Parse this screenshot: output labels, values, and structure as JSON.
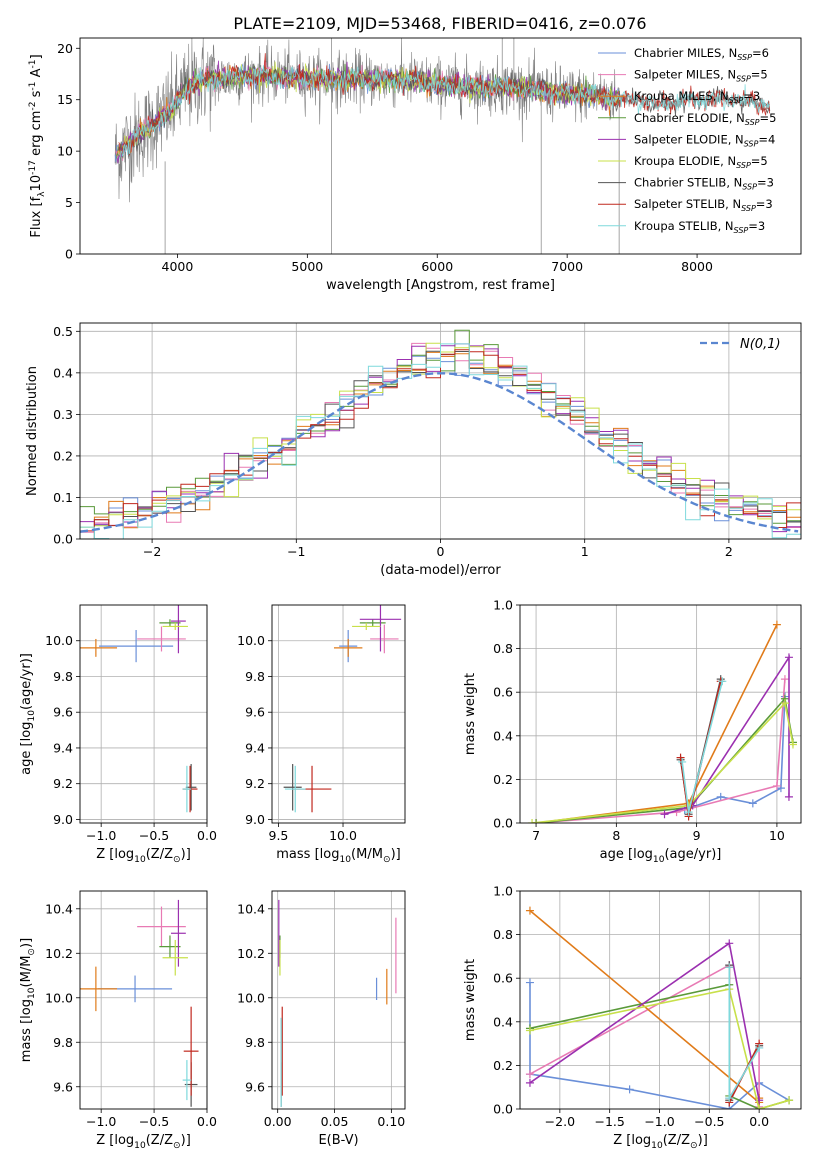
{
  "figure_title": "PLATE=2109, MJD=53468, FIBERID=0416, z=0.076",
  "colors": {
    "blue": "#6a8fd8",
    "pink": "#e87ab4",
    "orange": "#e07b1a",
    "green": "#5a9a3a",
    "purple": "#9b30b0",
    "yellow": "#c8e04a",
    "grey": "#555555",
    "red": "#c0281e",
    "cyan": "#7fd9dc",
    "spec": "#808080",
    "grid": "#b0b0b0"
  },
  "chart_data": [
    {
      "id": "spectrum",
      "type": "line",
      "xlabel": "wavelength [Angstrom, rest frame]",
      "ylabel": "Flux [f$_\\lambda$10$^{-17}$ erg cm$^{-2}$ s$^{-1}$ A$^{-1}$]",
      "xlim": [
        3250,
        8800
      ],
      "ylim": [
        0,
        21
      ],
      "xticks": [
        4000,
        5000,
        6000,
        7000,
        8000
      ],
      "yticks": [
        0,
        5,
        10,
        15,
        20
      ],
      "grid": false,
      "legend": "upper-right",
      "legend_entries": [
        {
          "label": "Chabrier MILES, N",
          "sub": "SSP",
          "suffix": "=6",
          "color": "blue"
        },
        {
          "label": "Salpeter MILES, N",
          "sub": "SSP",
          "suffix": "=5",
          "color": "pink"
        },
        {
          "label": "Kroupa MILES, N",
          "sub": "SSP",
          "suffix": "=3",
          "color": "orange"
        },
        {
          "label": "Chabrier ELODIE, N",
          "sub": "SSP",
          "suffix": "=5",
          "color": "green"
        },
        {
          "label": "Salpeter ELODIE, N",
          "sub": "SSP",
          "suffix": "=4",
          "color": "purple"
        },
        {
          "label": "Kroupa ELODIE, N",
          "sub": "SSP",
          "suffix": "=5",
          "color": "yellow"
        },
        {
          "label": "Chabrier STELIB, N",
          "sub": "SSP",
          "suffix": "=3",
          "color": "grey"
        },
        {
          "label": "Salpeter STELIB, N",
          "sub": "SSP",
          "suffix": "=3",
          "color": "red"
        },
        {
          "label": "Kroupa STELIB, N",
          "sub": "SSP",
          "suffix": "=3",
          "color": "cyan"
        }
      ],
      "continuum_knots": [
        [
          3520,
          9.5
        ],
        [
          3600,
          10.5
        ],
        [
          3700,
          11.5
        ],
        [
          3800,
          12.5
        ],
        [
          3900,
          13.5
        ],
        [
          3980,
          14.5
        ],
        [
          4050,
          15.8
        ],
        [
          4150,
          16.8
        ],
        [
          4300,
          17.0
        ],
        [
          4500,
          17.3
        ],
        [
          4800,
          17.3
        ],
        [
          5100,
          17.0
        ],
        [
          5400,
          17.0
        ],
        [
          5800,
          16.9
        ],
        [
          6000,
          16.5
        ],
        [
          6300,
          16.3
        ],
        [
          6600,
          16.2
        ],
        [
          6900,
          15.7
        ],
        [
          7200,
          15.4
        ],
        [
          7500,
          15.0
        ],
        [
          7700,
          14.6
        ],
        [
          8000,
          15.0
        ],
        [
          8300,
          15.0
        ],
        [
          8560,
          14.4
        ]
      ],
      "noisy_start": 3520,
      "noisy_end": 7400
    },
    {
      "id": "residuals",
      "type": "histogram",
      "xlabel": "(data-model)/error",
      "ylabel": "Normed distribution",
      "xlim": [
        -2.5,
        2.5
      ],
      "ylim": [
        0,
        0.52
      ],
      "xticks": [
        -2,
        -1,
        0,
        1,
        2
      ],
      "yticks": [
        0.0,
        0.1,
        0.2,
        0.3,
        0.4,
        0.5
      ],
      "grid": true,
      "legend": "upper-right",
      "gauss_label": "$\\mathcal{N}(0,1)$",
      "bin_width": 0.1,
      "bins_from": -2.5
    },
    {
      "id": "age_Z",
      "type": "errorbar",
      "xlabel": "Z [log$_{10}$(Z/Z$_\\odot$)]",
      "ylabel": "age  [log$_{10}$(age/yr)]",
      "xlim": [
        -1.2,
        0.0
      ],
      "ylim": [
        8.98,
        10.2
      ],
      "xticks": [
        -1.0,
        -0.5,
        0.0
      ],
      "yticks": [
        9.0,
        9.2,
        9.4,
        9.6,
        9.8,
        10.0
      ],
      "grid": true,
      "points": [
        {
          "c": "blue",
          "x": -0.67,
          "xe": 0.35,
          "y": 9.97,
          "ye": 0.09
        },
        {
          "c": "pink",
          "x": -0.43,
          "xe": 0.23,
          "y": 10.01,
          "ye": 0.07
        },
        {
          "c": "orange",
          "x": -1.05,
          "xe": 0.2,
          "y": 9.96,
          "ye": 0.05
        },
        {
          "c": "green",
          "x": -0.35,
          "xe": 0.1,
          "y": 10.1,
          "ye": 0.02
        },
        {
          "c": "purple",
          "x": -0.27,
          "xe": 0.07,
          "y": 10.11,
          "ye": 0.18
        },
        {
          "c": "yellow",
          "x": -0.3,
          "xe": 0.12,
          "y": 10.08,
          "ye": 0.02
        },
        {
          "c": "grey",
          "x": -0.15,
          "xe": 0.05,
          "y": 9.18,
          "ye": 0.13
        },
        {
          "c": "red",
          "x": -0.16,
          "xe": 0.07,
          "y": 9.17,
          "ye": 0.13
        },
        {
          "c": "cyan",
          "x": -0.19,
          "xe": 0.04,
          "y": 9.17,
          "ye": 0.13
        }
      ]
    },
    {
      "id": "age_mass",
      "type": "errorbar",
      "xlabel": "mass [log$_{10}$(M/M$_\\odot$)]",
      "ylabel": "",
      "xlim": [
        9.45,
        10.48
      ],
      "ylim": [
        8.98,
        10.2
      ],
      "xticks": [
        9.5,
        10.0
      ],
      "yticks": [
        9.0,
        9.2,
        9.4,
        9.6,
        9.8,
        10.0
      ],
      "grid": true,
      "points": [
        {
          "c": "blue",
          "x": 10.04,
          "xe": 0.07,
          "y": 9.97,
          "ye": 0.09
        },
        {
          "c": "pink",
          "x": 10.32,
          "xe": 0.11,
          "y": 10.01,
          "ye": 0.08
        },
        {
          "c": "orange",
          "x": 10.04,
          "xe": 0.11,
          "y": 9.96,
          "ye": 0.05
        },
        {
          "c": "green",
          "x": 10.23,
          "xe": 0.1,
          "y": 10.1,
          "ye": 0.02
        },
        {
          "c": "purple",
          "x": 10.29,
          "xe": 0.16,
          "y": 10.12,
          "ye": 0.18
        },
        {
          "c": "yellow",
          "x": 10.18,
          "xe": 0.11,
          "y": 10.08,
          "ye": 0.02
        },
        {
          "c": "grey",
          "x": 9.61,
          "xe": 0.07,
          "y": 9.18,
          "ye": 0.13
        },
        {
          "c": "red",
          "x": 9.76,
          "xe": 0.15,
          "y": 9.17,
          "ye": 0.13
        },
        {
          "c": "cyan",
          "x": 9.63,
          "xe": 0.08,
          "y": 9.17,
          "ye": 0.13
        }
      ]
    },
    {
      "id": "mw_age",
      "type": "line",
      "xlabel": "age  [log$_{10}$(age/yr)]",
      "ylabel": "mass weight",
      "xlim": [
        6.8,
        10.3
      ],
      "ylim": [
        0,
        1.0
      ],
      "xticks": [
        7,
        8,
        9,
        10
      ],
      "yticks": [
        0.0,
        0.2,
        0.4,
        0.6,
        0.8,
        1.0
      ],
      "grid": true,
      "series": [
        {
          "c": "blue",
          "pts": [
            [
              8.85,
              0.06
            ],
            [
              9.3,
              0.12
            ],
            [
              9.7,
              0.09
            ],
            [
              10.05,
              0.16
            ],
            [
              10.1,
              0.58
            ]
          ]
        },
        {
          "c": "pink",
          "pts": [
            [
              7.0,
              0.0
            ],
            [
              8.75,
              0.05
            ],
            [
              10.0,
              0.17
            ],
            [
              10.1,
              0.66
            ]
          ]
        },
        {
          "c": "orange",
          "pts": [
            [
              7.0,
              0.0
            ],
            [
              8.9,
              0.09
            ],
            [
              10.0,
              0.91
            ]
          ]
        },
        {
          "c": "green",
          "pts": [
            [
              7.0,
              0.0
            ],
            [
              8.9,
              0.07
            ],
            [
              10.1,
              0.57
            ],
            [
              10.2,
              0.37
            ]
          ]
        },
        {
          "c": "purple",
          "pts": [
            [
              8.6,
              0.04
            ],
            [
              8.95,
              0.08
            ],
            [
              10.15,
              0.76
            ],
            [
              10.15,
              0.12
            ]
          ]
        },
        {
          "c": "yellow",
          "pts": [
            [
              6.95,
              0.0
            ],
            [
              8.9,
              0.08
            ],
            [
              10.1,
              0.55
            ],
            [
              10.2,
              0.36
            ]
          ]
        },
        {
          "c": "grey",
          "pts": [
            [
              8.8,
              0.29
            ],
            [
              8.9,
              0.04
            ],
            [
              9.3,
              0.66
            ]
          ]
        },
        {
          "c": "red",
          "pts": [
            [
              8.8,
              0.3
            ],
            [
              8.9,
              0.03
            ],
            [
              9.3,
              0.65
            ]
          ]
        },
        {
          "c": "cyan",
          "pts": [
            [
              8.82,
              0.28
            ],
            [
              8.9,
              0.05
            ],
            [
              9.32,
              0.65
            ]
          ]
        }
      ]
    },
    {
      "id": "mass_Z",
      "type": "errorbar",
      "xlabel": "Z [log$_{10}$(Z/Z$_\\odot$)]",
      "ylabel": "mass [log$_{10}$(M/M$_\\odot$)]",
      "xlim": [
        -1.2,
        0.0
      ],
      "ylim": [
        9.5,
        10.48
      ],
      "xticks": [
        -1.0,
        -0.5,
        0.0
      ],
      "yticks": [
        9.6,
        9.8,
        10.0,
        10.2,
        10.4
      ],
      "grid": true,
      "points": [
        {
          "c": "blue",
          "x": -0.68,
          "xe": 0.35,
          "y": 10.04,
          "ye": 0.06
        },
        {
          "c": "pink",
          "x": -0.43,
          "xe": 0.23,
          "y": 10.32,
          "ye": 0.09
        },
        {
          "c": "orange",
          "x": -1.05,
          "xe": 0.2,
          "y": 10.04,
          "ye": 0.1
        },
        {
          "c": "green",
          "x": -0.35,
          "xe": 0.1,
          "y": 10.23,
          "ye": 0.05
        },
        {
          "c": "purple",
          "x": -0.27,
          "xe": 0.07,
          "y": 10.29,
          "ye": 0.15
        },
        {
          "c": "yellow",
          "x": -0.3,
          "xe": 0.12,
          "y": 10.18,
          "ye": 0.08
        },
        {
          "c": "grey",
          "x": -0.15,
          "xe": 0.06,
          "y": 9.61,
          "ye": 0.1
        },
        {
          "c": "red",
          "x": -0.15,
          "xe": 0.07,
          "y": 9.76,
          "ye": 0.2
        },
        {
          "c": "cyan",
          "x": -0.19,
          "xe": 0.04,
          "y": 9.63,
          "ye": 0.09
        }
      ]
    },
    {
      "id": "mass_EBV",
      "type": "errorbar",
      "xlabel": "E(B-V)",
      "ylabel": "",
      "xlim": [
        -0.005,
        0.112
      ],
      "ylim": [
        9.5,
        10.48
      ],
      "xticks": [
        0.0,
        0.05,
        0.1
      ],
      "yticks": [
        9.6,
        9.8,
        10.0,
        10.2,
        10.4
      ],
      "grid": true,
      "points": [
        {
          "c": "blue",
          "x": 0.087,
          "xe": 0.0,
          "y": 10.04,
          "ye": 0.05
        },
        {
          "c": "pink",
          "x": 0.104,
          "xe": 0.0,
          "y": 10.19,
          "ye": 0.17
        },
        {
          "c": "orange",
          "x": 0.096,
          "xe": 0.0,
          "y": 10.05,
          "ye": 0.08
        },
        {
          "c": "green",
          "x": 0.002,
          "xe": 0.0,
          "y": 10.23,
          "ye": 0.05
        },
        {
          "c": "purple",
          "x": 0.001,
          "xe": 0.0,
          "y": 10.29,
          "ye": 0.15
        },
        {
          "c": "yellow",
          "x": 0.002,
          "xe": 0.0,
          "y": 10.18,
          "ye": 0.08
        },
        {
          "c": "grey",
          "x": 0.003,
          "xe": 0.0,
          "y": 9.61,
          "ye": 0.1
        },
        {
          "c": "red",
          "x": 0.004,
          "xe": 0.0,
          "y": 9.76,
          "ye": 0.2
        },
        {
          "c": "cyan",
          "x": 0.003,
          "xe": 0.0,
          "y": 9.71,
          "ye": 0.2
        }
      ]
    },
    {
      "id": "mw_Z",
      "type": "line",
      "xlabel": "Z [log$_{10}$(Z/Z$_\\odot$)]",
      "ylabel": "mass weight",
      "xlim": [
        -2.4,
        0.42
      ],
      "ylim": [
        0,
        1.0
      ],
      "xticks": [
        -2.0,
        -1.5,
        -1.0,
        -0.5,
        0.0
      ],
      "yticks": [
        0.0,
        0.2,
        0.4,
        0.6,
        0.8,
        1.0
      ],
      "grid": true,
      "series": [
        {
          "c": "blue",
          "pts": [
            [
              -2.3,
              0.58
            ],
            [
              -2.3,
              0.16
            ],
            [
              -1.3,
              0.09
            ],
            [
              -0.3,
              0.0
            ],
            [
              0.0,
              0.12
            ],
            [
              0.3,
              0.04
            ]
          ]
        },
        {
          "c": "pink",
          "pts": [
            [
              -2.3,
              0.16
            ],
            [
              -0.3,
              0.66
            ],
            [
              -0.3,
              0.05
            ],
            [
              0.0,
              0.28
            ],
            [
              0.0,
              0.01
            ]
          ]
        },
        {
          "c": "orange",
          "pts": [
            [
              -2.3,
              0.91
            ],
            [
              0.0,
              0.03
            ],
            [
              0.0,
              0.05
            ]
          ]
        },
        {
          "c": "green",
          "pts": [
            [
              -2.3,
              0.37
            ],
            [
              -0.3,
              0.57
            ],
            [
              -0.3,
              0.06
            ],
            [
              0.0,
              0.0
            ],
            [
              0.3,
              0.04
            ]
          ]
        },
        {
          "c": "purple",
          "pts": [
            [
              -2.3,
              0.12
            ],
            [
              -0.3,
              0.76
            ],
            [
              0.0,
              0.04
            ]
          ]
        },
        {
          "c": "yellow",
          "pts": [
            [
              -2.3,
              0.36
            ],
            [
              -0.3,
              0.55
            ],
            [
              0.0,
              0.0
            ],
            [
              0.3,
              0.04
            ]
          ]
        },
        {
          "c": "grey",
          "pts": [
            [
              -0.3,
              0.66
            ],
            [
              -0.3,
              0.04
            ],
            [
              0.0,
              0.29
            ]
          ]
        },
        {
          "c": "red",
          "pts": [
            [
              -0.3,
              0.65
            ],
            [
              -0.3,
              0.03
            ],
            [
              0.0,
              0.3
            ]
          ]
        },
        {
          "c": "cyan",
          "pts": [
            [
              -0.3,
              0.65
            ],
            [
              -0.3,
              0.05
            ],
            [
              0.0,
              0.28
            ]
          ]
        }
      ]
    }
  ]
}
